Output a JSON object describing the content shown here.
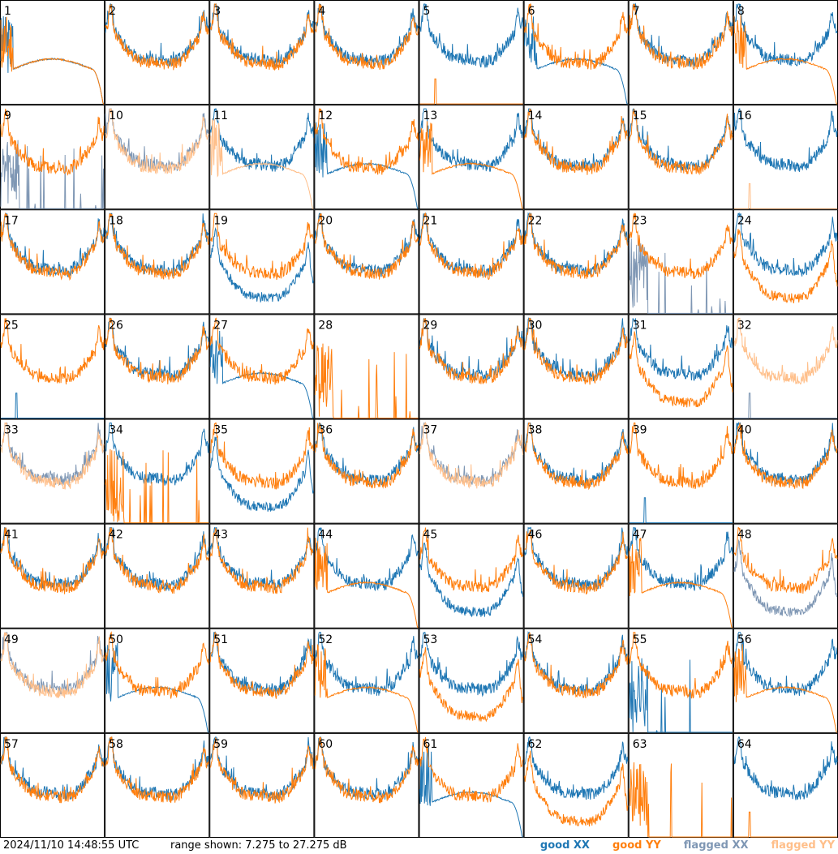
{
  "footer": {
    "timestamp": "2024/11/10 14:48:55 UTC",
    "range_text": "range shown: 7.275 to 27.275 dB",
    "legend": [
      "good XX",
      "good YY",
      "flagged XX",
      "flagged YY"
    ]
  },
  "colors": {
    "good_xx": "#1f77b4",
    "good_yy": "#ff7f0e",
    "flagged_xx": "#7f97b4",
    "flagged_yy": "#ffbf8a"
  },
  "chart_data": {
    "type": "line",
    "grid_rows": 8,
    "grid_cols": 8,
    "ylim": [
      7.275,
      27.275
    ],
    "series_names": [
      "XX",
      "YY"
    ],
    "panels": [
      {
        "id": "1",
        "xx": "drop",
        "yy": "drop",
        "yy_flagged": false,
        "xx_flagged": false
      },
      {
        "id": "2",
        "xx": "normal",
        "yy": "normal",
        "xx_flagged": false,
        "yy_flagged": false
      },
      {
        "id": "3",
        "xx": "normal",
        "yy": "normal",
        "xx_flagged": false,
        "yy_flagged": false
      },
      {
        "id": "4",
        "xx": "normal",
        "yy": "normal",
        "xx_flagged": false,
        "yy_flagged": false
      },
      {
        "id": "5",
        "xx": "normal",
        "yy": "dead",
        "xx_flagged": false,
        "yy_flagged": false
      },
      {
        "id": "6",
        "xx": "drop",
        "yy": "normal",
        "xx_flagged": false,
        "yy_flagged": false
      },
      {
        "id": "7",
        "xx": "normal",
        "yy": "normal",
        "xx_flagged": false,
        "yy_flagged": false
      },
      {
        "id": "8",
        "xx": "normal",
        "yy": "drop",
        "xx_flagged": false,
        "yy_flagged": false
      },
      {
        "id": "9",
        "xx": "spikes",
        "yy": "normal",
        "xx_flagged": true,
        "yy_flagged": false
      },
      {
        "id": "10",
        "xx": "normal",
        "yy": "normal",
        "xx_flagged": true,
        "yy_flagged": true
      },
      {
        "id": "11",
        "xx": "normal",
        "yy": "drop",
        "xx_flagged": false,
        "yy_flagged": true
      },
      {
        "id": "12",
        "xx": "drop",
        "yy": "normal",
        "xx_flagged": false,
        "yy_flagged": false
      },
      {
        "id": "13",
        "xx": "normal",
        "yy": "drop",
        "xx_flagged": false,
        "yy_flagged": false
      },
      {
        "id": "14",
        "xx": "normal",
        "yy": "normal",
        "xx_flagged": false,
        "yy_flagged": false
      },
      {
        "id": "15",
        "xx": "normal",
        "yy": "normal",
        "xx_flagged": false,
        "yy_flagged": false
      },
      {
        "id": "16",
        "xx": "normal",
        "yy": "dead",
        "xx_flagged": false,
        "yy_flagged": true
      },
      {
        "id": "17",
        "xx": "normal",
        "yy": "normal",
        "xx_flagged": false,
        "yy_flagged": false
      },
      {
        "id": "18",
        "xx": "normal",
        "yy": "normal",
        "xx_flagged": false,
        "yy_flagged": false
      },
      {
        "id": "19",
        "xx": "low",
        "yy": "normal",
        "xx_flagged": false,
        "yy_flagged": false
      },
      {
        "id": "20",
        "xx": "normal",
        "yy": "normal",
        "xx_flagged": false,
        "yy_flagged": false
      },
      {
        "id": "21",
        "xx": "normal",
        "yy": "normal",
        "xx_flagged": false,
        "yy_flagged": false
      },
      {
        "id": "22",
        "xx": "normal",
        "yy": "normal",
        "xx_flagged": false,
        "yy_flagged": false
      },
      {
        "id": "23",
        "xx": "spikes",
        "yy": "normal",
        "xx_flagged": true,
        "yy_flagged": false
      },
      {
        "id": "24",
        "xx": "normal",
        "yy": "low",
        "xx_flagged": false,
        "yy_flagged": false
      },
      {
        "id": "25",
        "xx": "dead",
        "yy": "normal",
        "xx_flagged": false,
        "yy_flagged": false
      },
      {
        "id": "26",
        "xx": "normal",
        "yy": "normal",
        "xx_flagged": false,
        "yy_flagged": false
      },
      {
        "id": "27",
        "xx": "drop",
        "yy": "normal",
        "xx_flagged": false,
        "yy_flagged": false
      },
      {
        "id": "28",
        "xx": "none",
        "yy": "spikes",
        "xx_flagged": false,
        "yy_flagged": false
      },
      {
        "id": "29",
        "xx": "normal",
        "yy": "normal",
        "xx_flagged": false,
        "yy_flagged": false
      },
      {
        "id": "30",
        "xx": "normal",
        "yy": "normal",
        "xx_flagged": false,
        "yy_flagged": false
      },
      {
        "id": "31",
        "xx": "normal",
        "yy": "low",
        "xx_flagged": false,
        "yy_flagged": false
      },
      {
        "id": "32",
        "xx": "dead",
        "yy": "normal",
        "xx_flagged": true,
        "yy_flagged": true
      },
      {
        "id": "33",
        "xx": "normal",
        "yy": "normal",
        "xx_flagged": true,
        "yy_flagged": true
      },
      {
        "id": "34",
        "xx": "normal",
        "yy": "spikes",
        "xx_flagged": false,
        "yy_flagged": false
      },
      {
        "id": "35",
        "xx": "low",
        "yy": "normal",
        "xx_flagged": false,
        "yy_flagged": false
      },
      {
        "id": "36",
        "xx": "normal",
        "yy": "normal",
        "xx_flagged": false,
        "yy_flagged": false
      },
      {
        "id": "37",
        "xx": "normal",
        "yy": "normal",
        "xx_flagged": true,
        "yy_flagged": true
      },
      {
        "id": "38",
        "xx": "normal",
        "yy": "normal",
        "xx_flagged": false,
        "yy_flagged": false
      },
      {
        "id": "39",
        "xx": "dead",
        "yy": "normal",
        "xx_flagged": false,
        "yy_flagged": false
      },
      {
        "id": "40",
        "xx": "normal",
        "yy": "normal",
        "xx_flagged": false,
        "yy_flagged": false
      },
      {
        "id": "41",
        "xx": "normal",
        "yy": "normal",
        "xx_flagged": false,
        "yy_flagged": false
      },
      {
        "id": "42",
        "xx": "normal",
        "yy": "normal",
        "xx_flagged": false,
        "yy_flagged": false
      },
      {
        "id": "43",
        "xx": "normal",
        "yy": "normal",
        "xx_flagged": false,
        "yy_flagged": false
      },
      {
        "id": "44",
        "xx": "normal",
        "yy": "drop",
        "xx_flagged": false,
        "yy_flagged": false
      },
      {
        "id": "45",
        "xx": "low",
        "yy": "normal",
        "xx_flagged": false,
        "yy_flagged": false
      },
      {
        "id": "46",
        "xx": "normal",
        "yy": "normal",
        "xx_flagged": false,
        "yy_flagged": false
      },
      {
        "id": "47",
        "xx": "normal",
        "yy": "drop",
        "xx_flagged": false,
        "yy_flagged": false
      },
      {
        "id": "48",
        "xx": "low",
        "yy": "normal",
        "xx_flagged": true,
        "yy_flagged": false
      },
      {
        "id": "49",
        "xx": "normal",
        "yy": "normal",
        "xx_flagged": true,
        "yy_flagged": true
      },
      {
        "id": "50",
        "xx": "drop",
        "yy": "normal",
        "xx_flagged": false,
        "yy_flagged": false
      },
      {
        "id": "51",
        "xx": "normal",
        "yy": "normal",
        "xx_flagged": false,
        "yy_flagged": false
      },
      {
        "id": "52",
        "xx": "normal",
        "yy": "drop",
        "xx_flagged": false,
        "yy_flagged": false
      },
      {
        "id": "53",
        "xx": "normal",
        "yy": "low",
        "xx_flagged": false,
        "yy_flagged": false
      },
      {
        "id": "54",
        "xx": "normal",
        "yy": "normal",
        "xx_flagged": false,
        "yy_flagged": false
      },
      {
        "id": "55",
        "xx": "spikes",
        "yy": "normal",
        "xx_flagged": false,
        "yy_flagged": false
      },
      {
        "id": "56",
        "xx": "normal",
        "yy": "drop",
        "xx_flagged": false,
        "yy_flagged": false
      },
      {
        "id": "57",
        "xx": "normal",
        "yy": "normal",
        "xx_flagged": false,
        "yy_flagged": false
      },
      {
        "id": "58",
        "xx": "normal",
        "yy": "normal",
        "xx_flagged": false,
        "yy_flagged": false
      },
      {
        "id": "59",
        "xx": "normal",
        "yy": "normal",
        "xx_flagged": false,
        "yy_flagged": false
      },
      {
        "id": "60",
        "xx": "normal",
        "yy": "normal",
        "xx_flagged": false,
        "yy_flagged": false
      },
      {
        "id": "61",
        "xx": "drop",
        "yy": "normal",
        "xx_flagged": false,
        "yy_flagged": false
      },
      {
        "id": "62",
        "xx": "normal",
        "yy": "low",
        "xx_flagged": false,
        "yy_flagged": false
      },
      {
        "id": "63",
        "xx": "none",
        "yy": "spikes",
        "xx_flagged": false,
        "yy_flagged": false
      },
      {
        "id": "64",
        "xx": "normal",
        "yy": "dead",
        "xx_flagged": false,
        "yy_flagged": false
      }
    ]
  }
}
